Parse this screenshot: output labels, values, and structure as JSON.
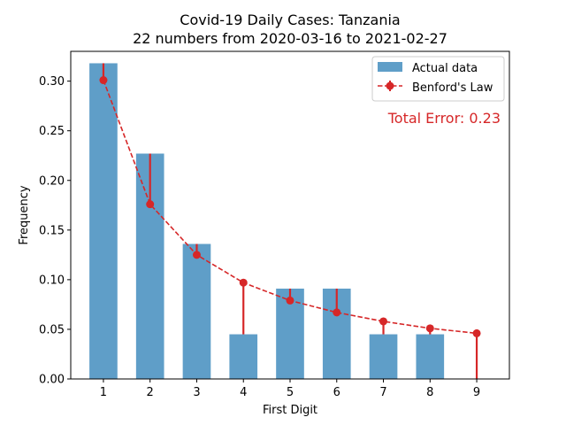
{
  "chart_data": {
    "type": "bar",
    "title": "Covid-19 Daily Cases: Tanzania",
    "subtitle": "22 numbers from 2020-03-16 to 2021-02-27",
    "xlabel": "First Digit",
    "ylabel": "Frequency",
    "categories": [
      "1",
      "2",
      "3",
      "4",
      "5",
      "6",
      "7",
      "8",
      "9"
    ],
    "ylim": [
      0,
      0.33
    ],
    "yticks": [
      "0.00",
      "0.05",
      "0.10",
      "0.15",
      "0.20",
      "0.25",
      "0.30"
    ],
    "series": [
      {
        "name": "Actual data",
        "type": "bar",
        "values": [
          0.318,
          0.227,
          0.136,
          0.045,
          0.091,
          0.091,
          0.045,
          0.045,
          0.0
        ],
        "color": "#5f9ec8"
      },
      {
        "name": "Benford's Law",
        "type": "line",
        "values": [
          0.301,
          0.176,
          0.125,
          0.097,
          0.079,
          0.067,
          0.058,
          0.051,
          0.046
        ],
        "color": "#d62728"
      }
    ],
    "annotation": {
      "text": "Total Error: 0.23",
      "color": "#d62728"
    },
    "legend_position": "top-right",
    "grid": false
  }
}
